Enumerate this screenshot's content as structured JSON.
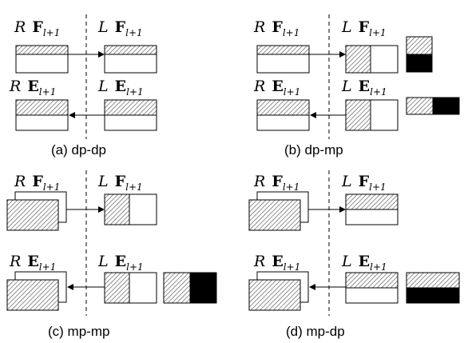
{
  "symbols": {
    "R": "R",
    "L": "L",
    "F": "F",
    "E": "E",
    "sub": "l+1"
  },
  "captions": {
    "a": "(a) dp-dp",
    "b": "(b) dp-mp",
    "c": "(c) mp-mp",
    "d": "(d) mp-dp"
  },
  "colors": {
    "stroke": "#000000",
    "fill": "#ffffff",
    "dark": "#000000",
    "hatch": "#555555"
  }
}
